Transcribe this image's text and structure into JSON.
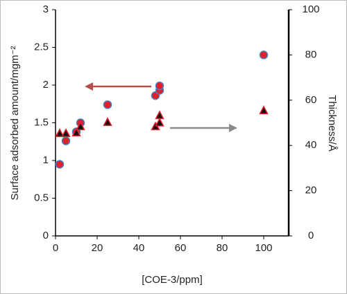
{
  "chart_data": {
    "type": "scatter",
    "xlabel": "[COE-3/ppm]",
    "ylabel": "Surface adsorbed amount/mgm⁻²",
    "y2label": "Thickness/Å",
    "xlim": [
      0,
      112
    ],
    "xticks": [
      0,
      20,
      40,
      60,
      80,
      100
    ],
    "ylim": [
      0,
      3
    ],
    "yticks": [
      0,
      0.5,
      1,
      1.5,
      2,
      2.5,
      3
    ],
    "y2lim": [
      0,
      100
    ],
    "y2ticks": [
      0,
      20,
      40,
      60,
      80,
      100
    ],
    "series": [
      {
        "marker": "circle",
        "color": "#e0202a",
        "edge": "#4a7fc0",
        "x": [
          2,
          5,
          10,
          12,
          25,
          48,
          50,
          50,
          100
        ],
        "values": [
          0.95,
          1.26,
          1.38,
          1.5,
          1.74,
          1.86,
          1.93,
          1.99,
          2.4
        ]
      },
      {
        "marker": "triangle",
        "axis": "y2",
        "color": "#111111",
        "edge": "#e0202a",
        "x": [
          2,
          5,
          10,
          12,
          25,
          48,
          50,
          50,
          100
        ],
        "values": [
          45.3,
          45.3,
          45.6,
          48.3,
          50.2,
          48.3,
          50,
          53.2,
          55.4
        ]
      }
    ]
  }
}
